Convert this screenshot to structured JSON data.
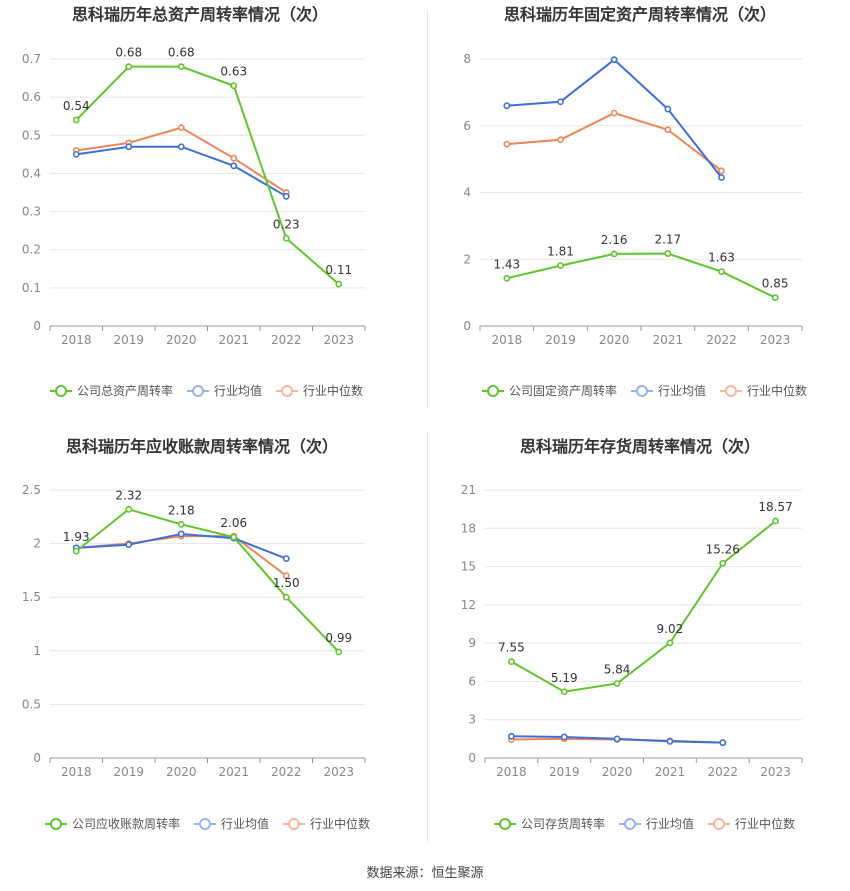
{
  "source_label": "数据来源：恒生聚源",
  "legend_common": {
    "industry_avg": "行业均值",
    "industry_median": "行业中位数"
  },
  "colors": {
    "company": "#5fc52e",
    "avg": "#3d6fd6",
    "median": "#f08459",
    "avg_legend": "#9ab3ec",
    "median_legend": "#f6b79c",
    "grid": "#e6e6e6",
    "tick": "#888888"
  },
  "chart_data": [
    {
      "type": "line",
      "title": "思科瑞历年总资产周转率情况（次）",
      "categories": [
        "2018",
        "2019",
        "2020",
        "2021",
        "2022",
        "2023"
      ],
      "yticks": [
        "0",
        "0.1",
        "0.2",
        "0.3",
        "0.4",
        "0.5",
        "0.6",
        "0.7"
      ],
      "ylim": [
        0,
        0.7
      ],
      "series": [
        {
          "name": "公司总资产周转率",
          "role": "company",
          "values": [
            0.54,
            0.68,
            0.68,
            0.63,
            0.23,
            0.11
          ],
          "labels": [
            "0.54",
            "0.68",
            "0.68",
            "0.63",
            "0.23",
            "0.11"
          ]
        },
        {
          "name": "行业均值",
          "role": "avg",
          "values": [
            0.45,
            0.47,
            0.47,
            0.42,
            0.34,
            null
          ]
        },
        {
          "name": "行业中位数",
          "role": "median",
          "values": [
            0.46,
            0.48,
            0.52,
            0.44,
            0.35,
            null
          ]
        }
      ]
    },
    {
      "type": "line",
      "title": "思科瑞历年固定资产周转率情况（次）",
      "categories": [
        "2018",
        "2019",
        "2020",
        "2021",
        "2022",
        "2023"
      ],
      "yticks": [
        "0",
        "2",
        "4",
        "6",
        "8"
      ],
      "ylim": [
        0,
        8
      ],
      "series": [
        {
          "name": "公司固定资产周转率",
          "role": "company",
          "values": [
            1.43,
            1.81,
            2.16,
            2.17,
            1.63,
            0.85
          ],
          "labels": [
            "1.43",
            "1.81",
            "2.16",
            "2.17",
            "1.63",
            "0.85"
          ]
        },
        {
          "name": "行业均值",
          "role": "avg",
          "values": [
            6.6,
            6.72,
            7.98,
            6.5,
            4.45,
            null
          ]
        },
        {
          "name": "行业中位数",
          "role": "median",
          "values": [
            5.45,
            5.58,
            6.38,
            5.88,
            4.65,
            null
          ]
        }
      ]
    },
    {
      "type": "line",
      "title": "思科瑞历年应收账款周转率情况（次）",
      "categories": [
        "2018",
        "2019",
        "2020",
        "2021",
        "2022",
        "2023"
      ],
      "yticks": [
        "0",
        "0.5",
        "1",
        "1.5",
        "2",
        "2.5"
      ],
      "ylim": [
        0,
        2.5
      ],
      "series": [
        {
          "name": "公司应收账款周转率",
          "role": "company",
          "values": [
            1.93,
            2.32,
            2.18,
            2.06,
            1.5,
            0.99
          ],
          "labels": [
            "1.93",
            "2.32",
            "2.18",
            "2.06",
            "1.50",
            "0.99"
          ]
        },
        {
          "name": "行业均值",
          "role": "avg",
          "values": [
            1.96,
            1.99,
            2.09,
            2.05,
            1.86,
            null
          ]
        },
        {
          "name": "行业中位数",
          "role": "median",
          "values": [
            1.96,
            2.0,
            2.07,
            2.07,
            1.7,
            null
          ]
        }
      ]
    },
    {
      "type": "line",
      "title": "思科瑞历年存货周转率情况（次）",
      "categories": [
        "2018",
        "2019",
        "2020",
        "2021",
        "2022",
        "2023"
      ],
      "yticks": [
        "0",
        "3",
        "6",
        "9",
        "12",
        "15",
        "18",
        "21"
      ],
      "ylim": [
        0,
        21
      ],
      "series": [
        {
          "name": "公司存货周转率",
          "role": "company",
          "values": [
            7.55,
            5.19,
            5.84,
            9.02,
            15.26,
            18.57
          ],
          "labels": [
            "7.55",
            "5.19",
            "5.84",
            "9.02",
            "15.26",
            "18.57"
          ]
        },
        {
          "name": "行业均值",
          "role": "avg",
          "values": [
            1.7,
            1.65,
            1.5,
            1.3,
            1.2,
            null
          ]
        },
        {
          "name": "行业中位数",
          "role": "median",
          "values": [
            1.45,
            1.5,
            1.45,
            1.35,
            1.2,
            null
          ]
        }
      ]
    }
  ]
}
